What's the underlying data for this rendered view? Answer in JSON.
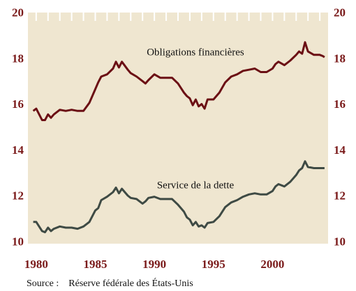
{
  "chart_data": {
    "type": "line",
    "annotations": [
      "Obligations financières",
      "Service de la dette"
    ],
    "source": "Source :    Réserve fédérale des États-Unis",
    "x": [
      1979.75,
      1980,
      1980.5,
      1980.75,
      1981,
      1981.25,
      1981.5,
      1982,
      1982.5,
      1983,
      1983.5,
      1984,
      1984.5,
      1985,
      1985.25,
      1985.5,
      1986,
      1986.5,
      1986.75,
      1987,
      1987.25,
      1987.75,
      1988,
      1988.5,
      1989,
      1989.25,
      1989.5,
      1990,
      1990.5,
      1991,
      1991.5,
      1992,
      1992.5,
      1992.75,
      1993,
      1993.25,
      1993.5,
      1993.75,
      1994,
      1994.25,
      1994.5,
      1995,
      1995.5,
      1996,
      1996.5,
      1997,
      1997.5,
      1998,
      1998.5,
      1999,
      1999.5,
      2000,
      2000.25,
      2000.5,
      2001,
      2001.5,
      2002,
      2002.25,
      2002.5,
      2002.75,
      2003,
      2003.5,
      2004,
      2004.25,
      2004.4
    ],
    "series": [
      {
        "color": "#6b0f14",
        "values": [
          15.75,
          15.85,
          15.35,
          15.35,
          15.6,
          15.45,
          15.6,
          15.8,
          15.75,
          15.8,
          15.75,
          15.75,
          16.1,
          16.7,
          17.0,
          17.25,
          17.35,
          17.6,
          17.9,
          17.65,
          17.9,
          17.55,
          17.4,
          17.25,
          17.05,
          16.95,
          17.1,
          17.35,
          17.2,
          17.2,
          17.2,
          16.95,
          16.55,
          16.4,
          16.3,
          16.0,
          16.25,
          15.95,
          16.05,
          15.85,
          16.25,
          16.25,
          16.55,
          17.0,
          17.25,
          17.35,
          17.5,
          17.55,
          17.6,
          17.45,
          17.45,
          17.6,
          17.8,
          17.9,
          17.75,
          17.95,
          18.2,
          18.35,
          18.25,
          18.75,
          18.35,
          18.2,
          18.2,
          18.15,
          18.1
        ]
      },
      {
        "color": "#3e4a44",
        "values": [
          10.9,
          10.9,
          10.5,
          10.45,
          10.65,
          10.5,
          10.6,
          10.7,
          10.65,
          10.65,
          10.6,
          10.7,
          10.9,
          11.4,
          11.5,
          11.85,
          12.0,
          12.2,
          12.4,
          12.15,
          12.35,
          12.05,
          11.95,
          11.9,
          11.7,
          11.8,
          11.95,
          12.0,
          11.9,
          11.9,
          11.9,
          11.65,
          11.35,
          11.1,
          11.0,
          10.75,
          10.9,
          10.7,
          10.75,
          10.65,
          10.85,
          10.9,
          11.15,
          11.55,
          11.75,
          11.85,
          12.0,
          12.1,
          12.15,
          12.1,
          12.1,
          12.25,
          12.45,
          12.55,
          12.45,
          12.65,
          12.95,
          13.15,
          13.25,
          13.55,
          13.3,
          13.25,
          13.25,
          13.25,
          13.25
        ]
      }
    ],
    "xlim": [
      1979.3,
      2004.7
    ],
    "xticks": [
      1980,
      1985,
      1990,
      1995,
      2000
    ],
    "top_ticks": [
      1980,
      1981,
      1982,
      1983,
      1984,
      1985,
      1986,
      1987,
      1988,
      1989,
      1990,
      1991,
      1992,
      1993,
      1994,
      1995,
      1996,
      1997,
      1998,
      1999,
      2000,
      2001,
      2002,
      2003,
      2004
    ],
    "ylim": [
      9.95,
      20.05
    ],
    "yticks": [
      10,
      12,
      14,
      16,
      18,
      20
    ],
    "background": "#efe6d0",
    "label_color": "#7a1a1a"
  }
}
